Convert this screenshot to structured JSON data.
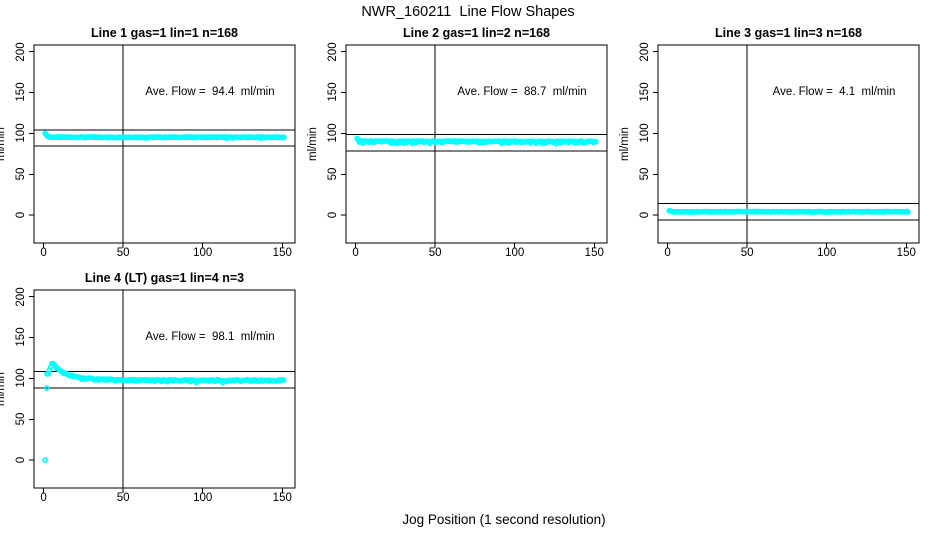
{
  "title": "NWR_160211  Line Flow Shapes",
  "xlabel": "Jog Position (1 second resolution)",
  "colors": {
    "data": "#00FFFF",
    "axis": "#000000",
    "background": "#FFFFFF"
  },
  "axes": {
    "ylabel": "ml/min",
    "x_ticks": [
      0,
      50,
      100,
      150
    ],
    "y_ticks": [
      0,
      50,
      100,
      150,
      200
    ],
    "xlim": [
      -6,
      158
    ],
    "ylim": [
      -34,
      208
    ],
    "grid": false
  },
  "chart_data": [
    {
      "type": "scatter",
      "title": "Line 1 gas=1 lin=1 n=168",
      "annotation": "Ave. Flow =  94.4  ml/min",
      "ave_flow": 94.4,
      "n": 168,
      "ref_h": [
        104.4,
        84.4
      ],
      "ref_v": 50,
      "profile": [
        [
          1,
          100.5
        ],
        [
          1.5,
          99
        ],
        [
          2,
          97.5
        ],
        [
          3,
          96.2
        ],
        [
          4,
          95.6
        ],
        [
          6,
          95.3
        ],
        [
          151,
          95.2
        ]
      ],
      "extra_points": [],
      "jitter": {
        "sym": 0.5,
        "down_p": 0.05,
        "down_mag": 1.2
      }
    },
    {
      "type": "scatter",
      "title": "Line 2 gas=1 lin=2 n=168",
      "annotation": "Ave. Flow =  88.7  ml/min",
      "ave_flow": 88.7,
      "n": 168,
      "ref_h": [
        98.7,
        78.7
      ],
      "ref_v": 50,
      "profile": [
        [
          1,
          93.5
        ],
        [
          1.5,
          92.3
        ],
        [
          2,
          91.3
        ],
        [
          3,
          90.7
        ],
        [
          5,
          90.3
        ],
        [
          151,
          90.1
        ]
      ],
      "extra_points": [],
      "jitter": {
        "sym": 0.6,
        "down_p": 0.33,
        "down_mag": 2.6
      }
    },
    {
      "type": "scatter",
      "title": "Line 3 gas=1 lin=3 n=168",
      "annotation": "Ave. Flow =  4.1  ml/min",
      "ave_flow": 4.1,
      "n": 168,
      "ref_h": [
        14.1,
        -5.9
      ],
      "ref_v": 50,
      "profile": [
        [
          1,
          5.3
        ],
        [
          2,
          4.7
        ],
        [
          3,
          4.4
        ],
        [
          5,
          4.2
        ],
        [
          151,
          4.2
        ]
      ],
      "extra_points": [],
      "jitter": {
        "sym": 0.4,
        "down_p": 0.0,
        "down_mag": 0
      }
    },
    {
      "type": "scatter",
      "title": "Line 4 (LT) gas=1 lin=4 n=3",
      "annotation": "Ave. Flow =  98.1  ml/min",
      "ave_flow": 98.1,
      "n": 3,
      "ref_h": [
        108.1,
        88.1
      ],
      "ref_v": 50,
      "profile": [
        [
          3,
          106
        ],
        [
          4,
          112.5
        ],
        [
          5,
          117
        ],
        [
          5.5,
          118.5
        ],
        [
          6,
          118
        ],
        [
          7,
          115.5
        ],
        [
          8,
          113.5
        ],
        [
          9,
          111.5
        ],
        [
          10,
          110
        ],
        [
          12,
          107.5
        ],
        [
          14,
          105.5
        ],
        [
          16,
          104
        ],
        [
          18,
          102.8
        ],
        [
          20,
          101.8
        ],
        [
          23,
          100.8
        ],
        [
          26,
          100
        ],
        [
          30,
          99.3
        ],
        [
          35,
          98.7
        ],
        [
          40,
          98.3
        ],
        [
          50,
          97.8
        ],
        [
          60,
          97.6
        ],
        [
          80,
          97.4
        ],
        [
          151,
          97.3
        ]
      ],
      "extra_points": [
        [
          1,
          0
        ],
        [
          2,
          88
        ],
        [
          2.2,
          105.5
        ]
      ],
      "jitter": {
        "sym": 0.9,
        "down_p": 0.06,
        "down_mag": 2
      }
    }
  ]
}
